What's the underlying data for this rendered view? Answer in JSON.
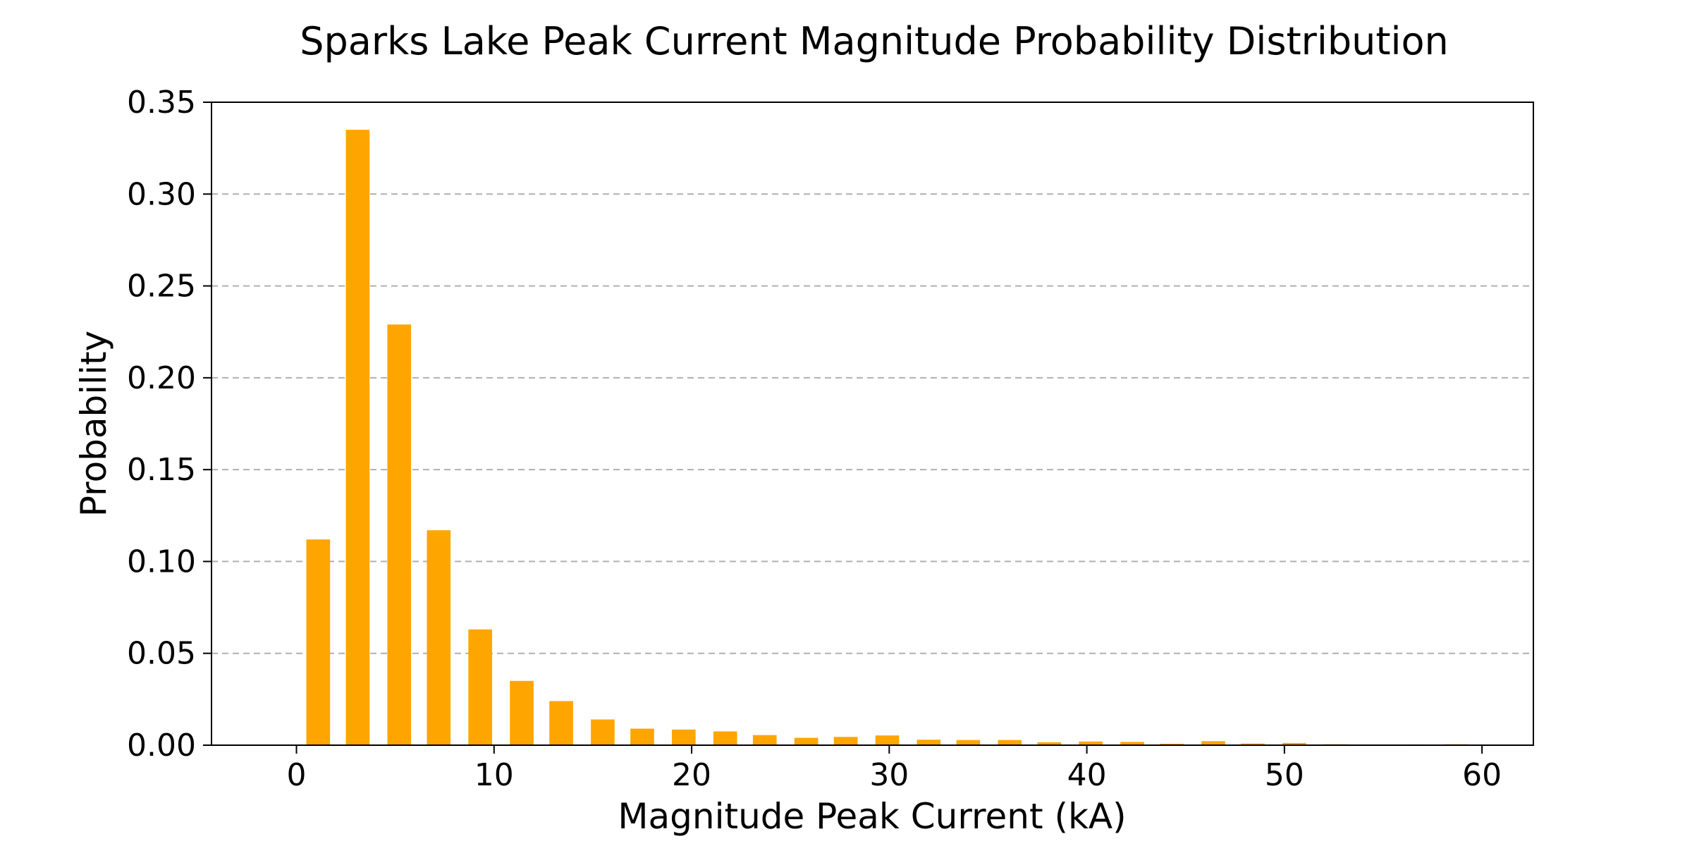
{
  "chart_data": {
    "type": "bar",
    "title": "Sparks Lake Peak Current Magnitude Probability Distribution",
    "xlabel": "Magnitude Peak Current (kA)",
    "ylabel": "Probability",
    "xlim": [
      -4.3,
      62.6
    ],
    "ylim": [
      0,
      0.35
    ],
    "x_ticks": [
      0,
      10,
      20,
      30,
      40,
      50,
      60
    ],
    "x_tick_labels": [
      "0",
      "10",
      "20",
      "30",
      "40",
      "50",
      "60"
    ],
    "y_ticks": [
      0.0,
      0.05,
      0.1,
      0.15,
      0.2,
      0.25,
      0.3,
      0.35
    ],
    "y_tick_labels": [
      "0.00",
      "0.05",
      "0.10",
      "0.15",
      "0.20",
      "0.25",
      "0.30",
      "0.35"
    ],
    "grid": "y-dashed",
    "bar_color": "#FFA500",
    "bar_width": 1.2,
    "x": [
      1.1,
      3.1,
      5.2,
      7.2,
      9.3,
      11.4,
      13.4,
      15.5,
      17.5,
      19.6,
      21.7,
      23.7,
      25.8,
      27.8,
      29.9,
      32.0,
      34.0,
      36.1,
      38.1,
      40.2,
      42.3,
      44.3,
      46.4,
      48.4,
      50.5,
      52.6,
      54.6,
      56.7,
      58.7
    ],
    "values": [
      0.112,
      0.335,
      0.229,
      0.117,
      0.063,
      0.035,
      0.024,
      0.014,
      0.009,
      0.0085,
      0.0075,
      0.0055,
      0.004,
      0.0045,
      0.0053,
      0.003,
      0.0028,
      0.0028,
      0.0016,
      0.002,
      0.0018,
      0.0008,
      0.0022,
      0.0009,
      0.0012,
      0.0005,
      0.0002,
      0.0004,
      0.0005
    ]
  }
}
